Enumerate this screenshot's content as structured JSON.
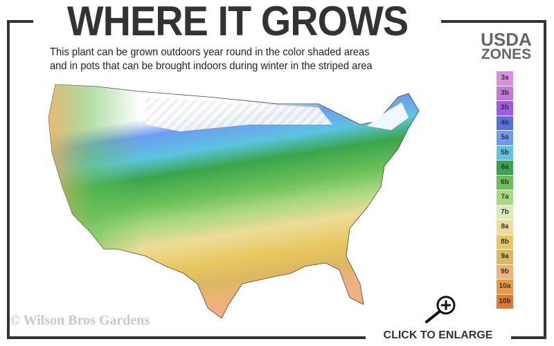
{
  "header": {
    "title": "WHERE IT GROWS",
    "subtitle_line1": "This plant can be grown outdoors year round in the color shaded areas",
    "subtitle_line2": "and in pots that can be brought indoors during winter in the striped area"
  },
  "legend": {
    "title_line1": "USDA",
    "title_line2": "ZONES",
    "zones": [
      {
        "label": "3a",
        "color": "#d88fe0"
      },
      {
        "label": "3b",
        "color": "#c27ad8"
      },
      {
        "label": "3b",
        "color": "#a05ce0"
      },
      {
        "label": "4b",
        "color": "#5a70e0"
      },
      {
        "label": "5a",
        "color": "#6c9cf0"
      },
      {
        "label": "5b",
        "color": "#5cc4e0"
      },
      {
        "label": "6a",
        "color": "#3aa54a"
      },
      {
        "label": "6b",
        "color": "#6cc05a"
      },
      {
        "label": "7a",
        "color": "#a8d880"
      },
      {
        "label": "7b",
        "color": "#dcecb8"
      },
      {
        "label": "8a",
        "color": "#ecdc98"
      },
      {
        "label": "8b",
        "color": "#e8c860"
      },
      {
        "label": "9a",
        "color": "#dcb860"
      },
      {
        "label": "9b",
        "color": "#f0b080"
      },
      {
        "label": "10a",
        "color": "#ec9840"
      },
      {
        "label": "10b",
        "color": "#e07830"
      }
    ]
  },
  "watermark": "© Wilson Bros Gardens",
  "enlarge": {
    "label": "CLICK TO ENLARGE",
    "icon": "zoom-in-magnifier-icon"
  }
}
